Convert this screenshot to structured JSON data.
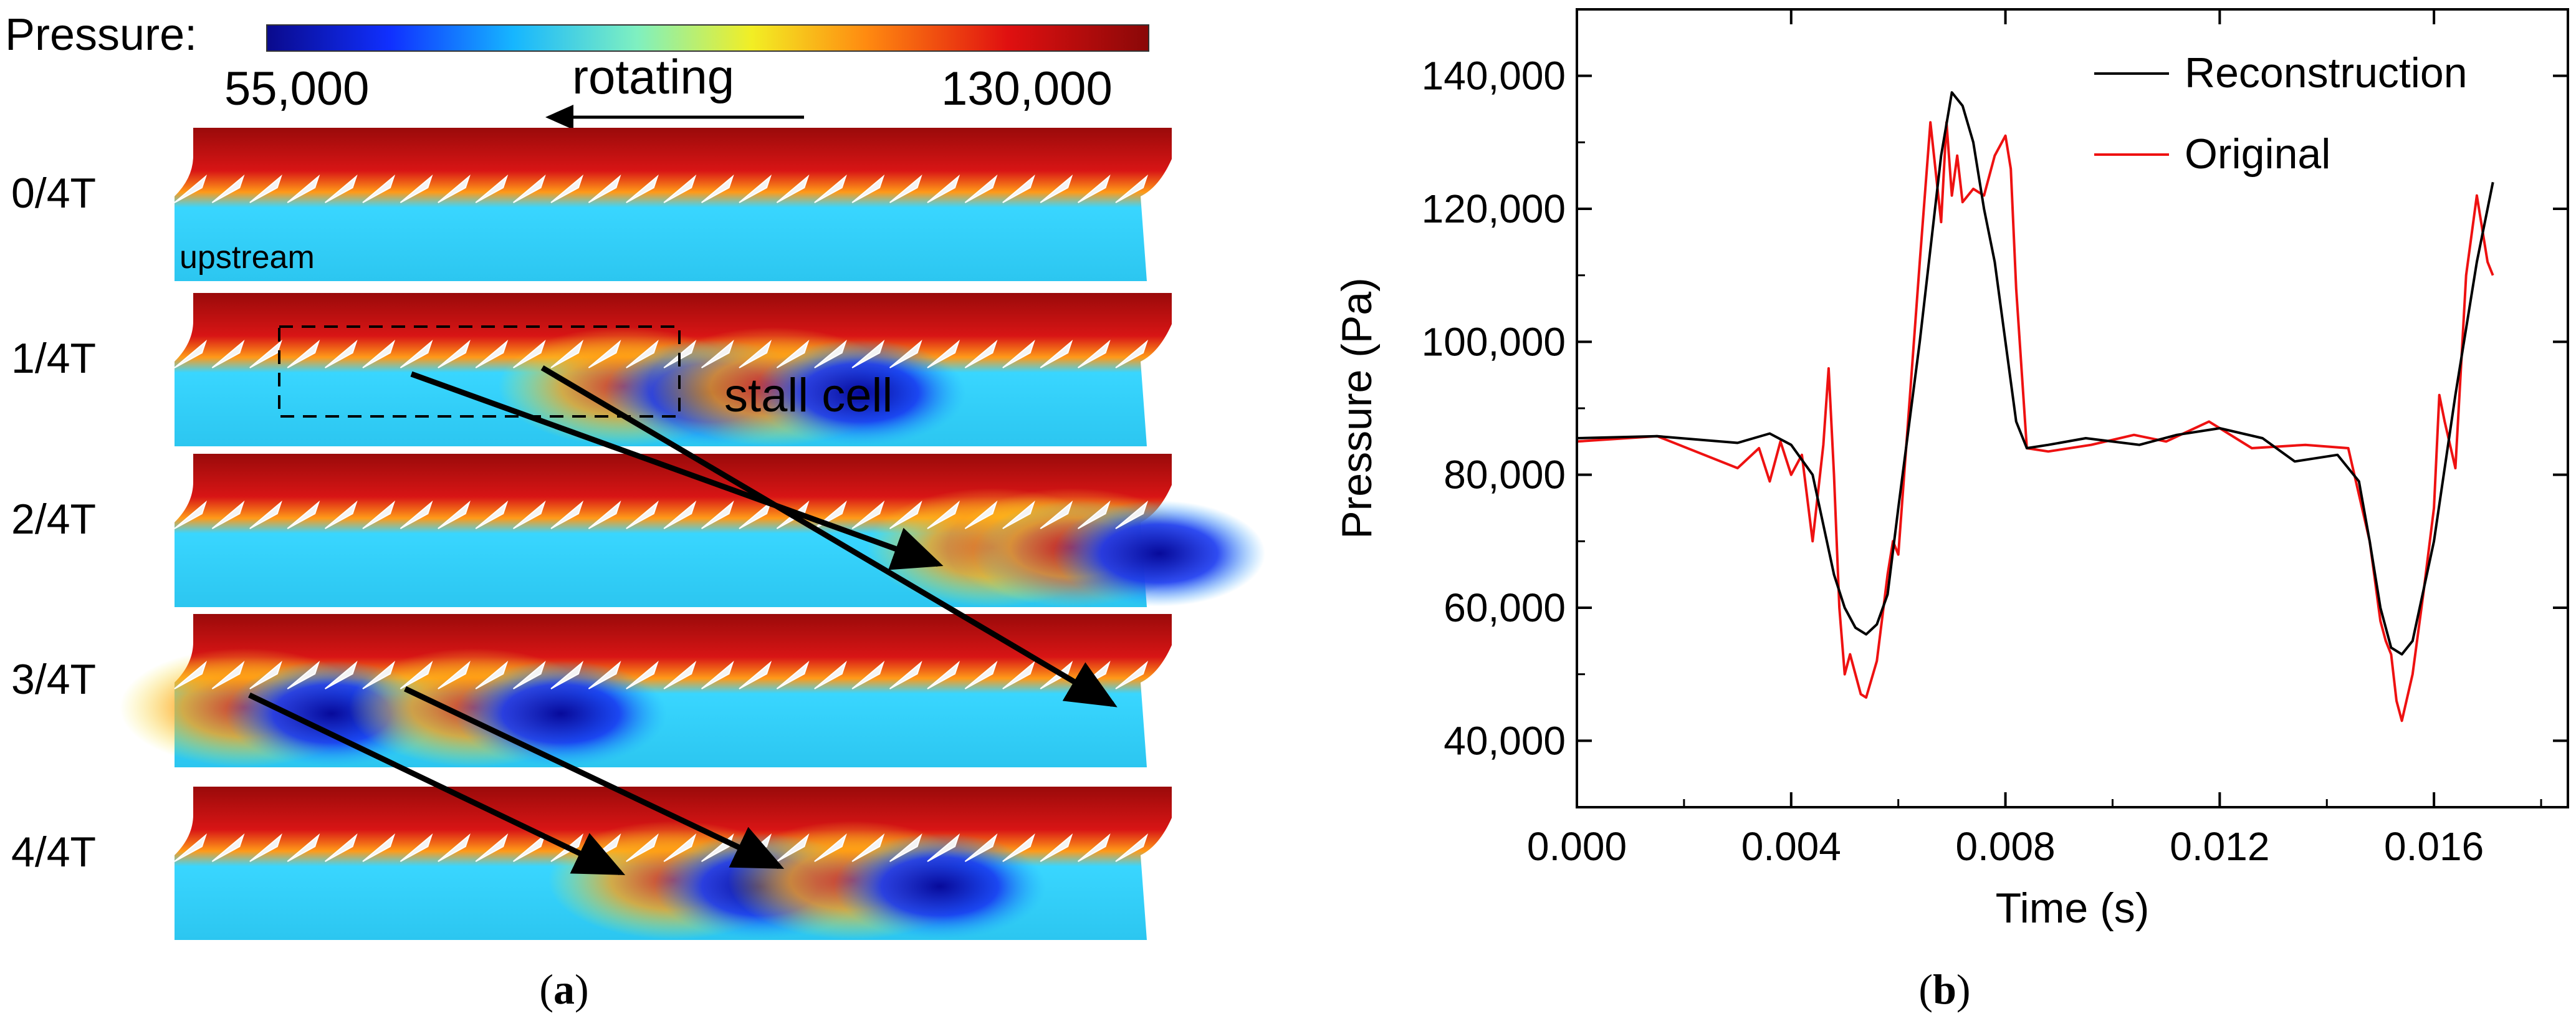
{
  "panel_a": {
    "colorbar": {
      "title": "Pressure:",
      "min_label": "55,000",
      "max_label": "130,000",
      "colors": [
        "#0a0a8c",
        "#1030ff",
        "#16b6ff",
        "#7ff0c0",
        "#f2ee24",
        "#ff8a10",
        "#e01010",
        "#8a0808"
      ]
    },
    "direction_label": "rotating",
    "upstream_label": "upstream",
    "stall_label": "stall cell",
    "rows": [
      {
        "label": "0/4T",
        "cells": []
      },
      {
        "label": "1/4T",
        "cells": [
          0.45,
          0.6
        ]
      },
      {
        "label": "2/4T",
        "cells": [
          0.82,
          0.9
        ]
      },
      {
        "label": "3/4T",
        "cells": [
          0.07,
          0.3
        ]
      },
      {
        "label": "4/4T",
        "cells": [
          0.5,
          0.68
        ]
      }
    ],
    "caption_letter": "a"
  },
  "chart_data": {
    "type": "line",
    "xlabel": "Time (s)",
    "ylabel": "Pressure (Pa)",
    "xlim": [
      0,
      0.0185
    ],
    "ylim": [
      30000,
      150000
    ],
    "x_ticks": [
      0,
      0.004,
      0.008,
      0.012,
      0.016
    ],
    "x_tick_labels": [
      "0.000",
      "0.004",
      "0.008",
      "0.012",
      "0.016"
    ],
    "y_ticks": [
      40000,
      60000,
      80000,
      100000,
      120000,
      140000
    ],
    "y_tick_labels": [
      "40,000",
      "60,000",
      "80,000",
      "100,000",
      "120,000",
      "140,000"
    ],
    "legend_position": "top-right",
    "series": [
      {
        "name": "Reconstruction",
        "color": "#000000",
        "x": [
          0,
          0.0015,
          0.003,
          0.0036,
          0.004,
          0.0044,
          0.0048,
          0.005,
          0.0052,
          0.0054,
          0.0056,
          0.0058,
          0.006,
          0.0064,
          0.0068,
          0.007,
          0.0072,
          0.0074,
          0.0076,
          0.0078,
          0.008,
          0.0082,
          0.0084,
          0.0088,
          0.0095,
          0.0105,
          0.0112,
          0.012,
          0.0128,
          0.0134,
          0.0142,
          0.0146,
          0.0148,
          0.015,
          0.0152,
          0.0154,
          0.0156,
          0.016,
          0.0164,
          0.0168,
          0.0171
        ],
        "values": [
          85500,
          85800,
          84800,
          86200,
          84500,
          80000,
          65000,
          60000,
          57000,
          56000,
          57500,
          62000,
          75000,
          100000,
          128000,
          137500,
          135500,
          130000,
          120000,
          112000,
          100000,
          88000,
          84000,
          84500,
          85500,
          84500,
          86000,
          87000,
          85500,
          82000,
          83000,
          79000,
          70000,
          60000,
          54000,
          53000,
          55000,
          70000,
          92000,
          112000,
          124000
        ]
      },
      {
        "name": "Original",
        "color": "#ee1111",
        "x": [
          0,
          0.0015,
          0.003,
          0.0034,
          0.0036,
          0.0038,
          0.004,
          0.0042,
          0.0044,
          0.0046,
          0.0047,
          0.0048,
          0.0049,
          0.005,
          0.0051,
          0.0052,
          0.0053,
          0.0054,
          0.0056,
          0.0058,
          0.0059,
          0.006,
          0.0064,
          0.0066,
          0.0068,
          0.0069,
          0.007,
          0.0071,
          0.0072,
          0.0074,
          0.0076,
          0.0078,
          0.008,
          0.0081,
          0.0082,
          0.0084,
          0.0088,
          0.0096,
          0.0104,
          0.011,
          0.0118,
          0.0126,
          0.0136,
          0.0144,
          0.0148,
          0.015,
          0.0151,
          0.0152,
          0.0153,
          0.0154,
          0.0156,
          0.0158,
          0.016,
          0.0161,
          0.0162,
          0.0164,
          0.0166,
          0.0168,
          0.017,
          0.0171
        ],
        "values": [
          85000,
          85800,
          81000,
          84000,
          79000,
          85000,
          80000,
          83000,
          70000,
          84500,
          96000,
          80000,
          60000,
          50000,
          53000,
          50000,
          47000,
          46500,
          52000,
          65000,
          70000,
          68000,
          112000,
          133000,
          118000,
          133000,
          122000,
          128000,
          121000,
          123000,
          122000,
          128000,
          131000,
          126000,
          108000,
          84000,
          83500,
          84500,
          86000,
          85000,
          88000,
          84000,
          84500,
          84000,
          70000,
          58000,
          55000,
          53000,
          46000,
          43000,
          50000,
          62000,
          75000,
          92000,
          88000,
          81000,
          110000,
          122000,
          112000,
          110000
        ]
      }
    ],
    "caption_letter": "b"
  }
}
